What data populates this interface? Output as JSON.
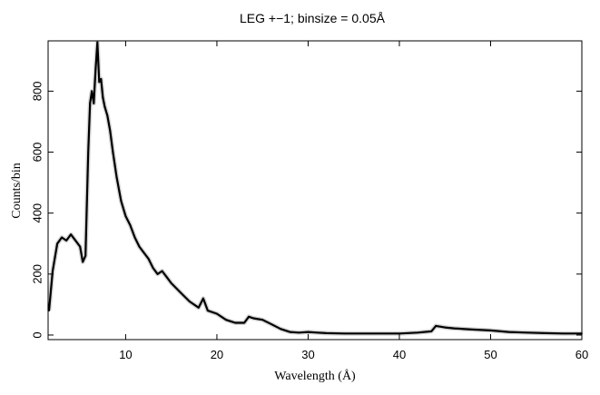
{
  "chart_data": {
    "type": "line",
    "title": "LEG +−1; binsize = 0.05Å",
    "xlabel": "Wavelength (Å)",
    "ylabel": "Counts/bin",
    "xlim": [
      1.5,
      60
    ],
    "ylim": [
      -15,
      965
    ],
    "xticks": [
      10,
      20,
      30,
      40,
      50,
      60
    ],
    "yticks": [
      0,
      200,
      400,
      600,
      800
    ],
    "grid": false,
    "legend": "none",
    "colors": {
      "line": "#000000",
      "error_band": "#bbbbbb"
    },
    "series": [
      {
        "x": [
          1.6,
          2.0,
          2.5,
          3.0,
          3.5,
          4.0,
          4.5,
          5.0,
          5.3,
          5.6,
          5.9,
          6.1,
          6.3,
          6.5,
          6.7,
          6.9,
          7.1,
          7.3,
          7.5,
          7.7,
          8.0,
          8.3,
          8.6,
          9.0,
          9.5,
          10.0,
          10.5,
          11.0,
          11.5,
          12.0,
          12.5,
          13.0,
          13.5,
          14.0,
          14.5,
          15.0,
          16.0,
          17.0,
          18.0,
          18.5,
          19.0,
          20.0,
          21.0,
          22.0,
          23.0,
          23.5,
          24.0,
          25.0,
          26.0,
          27.0,
          28.0,
          29.0,
          30.0,
          31.0,
          32.0,
          34.0,
          36.0,
          38.0,
          40.0,
          42.0,
          43.5,
          44.0,
          45.0,
          46.0,
          48.0,
          50.0,
          52.0,
          54.0,
          56.0,
          58.0,
          60.0
        ],
        "y": [
          80,
          210,
          300,
          320,
          310,
          330,
          310,
          290,
          240,
          260,
          600,
          760,
          800,
          760,
          870,
          960,
          830,
          840,
          780,
          750,
          720,
          670,
          600,
          520,
          440,
          390,
          360,
          320,
          290,
          270,
          250,
          220,
          200,
          210,
          190,
          170,
          140,
          110,
          90,
          120,
          80,
          70,
          50,
          40,
          40,
          60,
          55,
          50,
          35,
          20,
          10,
          8,
          10,
          8,
          6,
          5,
          5,
          5,
          5,
          8,
          12,
          30,
          25,
          22,
          18,
          15,
          10,
          8,
          6,
          5,
          5
        ]
      }
    ]
  }
}
